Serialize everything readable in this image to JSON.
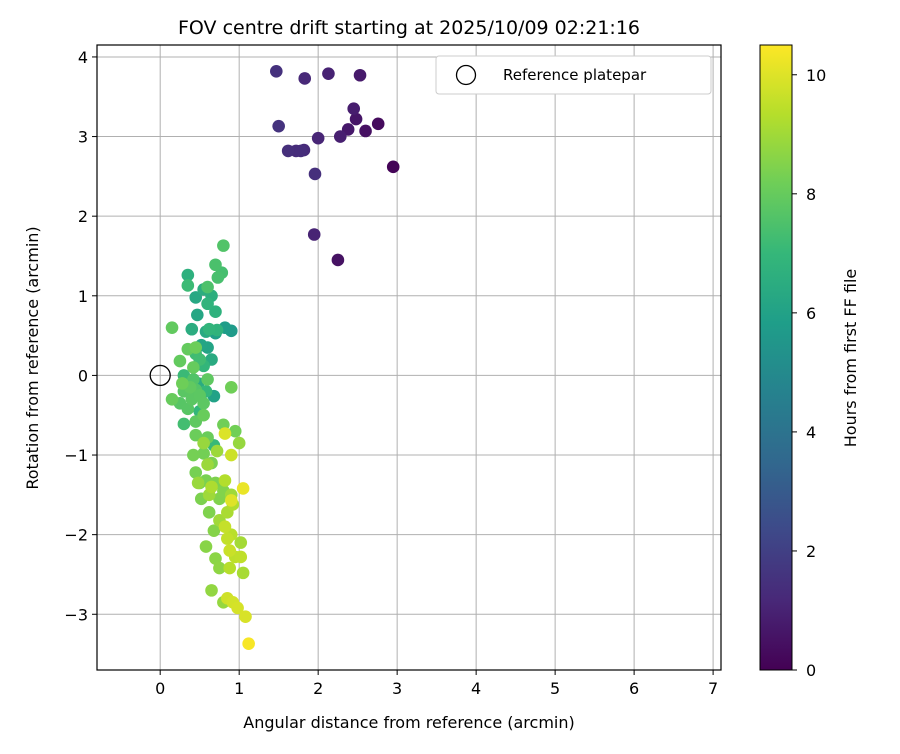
{
  "chart_data": {
    "type": "scatter",
    "title": "FOV centre drift starting at 2025/10/09 02:21:16",
    "xlabel": "Angular distance from reference (arcmin)",
    "ylabel": "Rotation from reference (arcmin)",
    "xlim": [
      -0.8,
      7.1
    ],
    "ylim": [
      -3.7,
      4.15
    ],
    "xticks": [
      0,
      1,
      2,
      3,
      4,
      5,
      6,
      7
    ],
    "yticks": [
      -3,
      -2,
      -1,
      0,
      1,
      2,
      3,
      4
    ],
    "xtick_labels": [
      "0",
      "1",
      "2",
      "3",
      "4",
      "5",
      "6",
      "7"
    ],
    "ytick_labels": [
      "−3",
      "−2",
      "−1",
      "0",
      "1",
      "2",
      "3",
      "4"
    ],
    "grid": true,
    "legend": {
      "placement": "top-right",
      "label": "Reference platepar"
    },
    "reference": {
      "x": 0,
      "y": 0
    },
    "colorbar": {
      "label": "Hours from first FF file",
      "range": [
        0,
        10.5
      ],
      "ticks": [
        0,
        2,
        4,
        6,
        8,
        10
      ],
      "tick_labels": [
        "0",
        "2",
        "4",
        "6",
        "8",
        "10"
      ],
      "colormap": "viridis",
      "stops": [
        "#440154",
        "#482878",
        "#3e4989",
        "#31688e",
        "#26828e",
        "#1f9e89",
        "#35b779",
        "#6ece58",
        "#b5de2b",
        "#fde725"
      ]
    },
    "points": [
      {
        "x": 2.95,
        "y": 2.62,
        "h": 0.1
      },
      {
        "x": 2.76,
        "y": 3.16,
        "h": 0.3
      },
      {
        "x": 2.6,
        "y": 3.07,
        "h": 0.45
      },
      {
        "x": 2.25,
        "y": 1.45,
        "h": 0.5
      },
      {
        "x": 2.48,
        "y": 3.22,
        "h": 0.6
      },
      {
        "x": 2.38,
        "y": 3.09,
        "h": 0.7
      },
      {
        "x": 2.53,
        "y": 3.77,
        "h": 0.75
      },
      {
        "x": 2.45,
        "y": 3.35,
        "h": 0.85
      },
      {
        "x": 2.28,
        "y": 3.0,
        "h": 0.9
      },
      {
        "x": 2.13,
        "y": 3.79,
        "h": 1.0
      },
      {
        "x": 1.95,
        "y": 1.77,
        "h": 1.05
      },
      {
        "x": 2.0,
        "y": 2.98,
        "h": 1.1
      },
      {
        "x": 1.83,
        "y": 3.73,
        "h": 1.2
      },
      {
        "x": 1.82,
        "y": 2.83,
        "h": 1.25
      },
      {
        "x": 1.72,
        "y": 2.82,
        "h": 1.3
      },
      {
        "x": 1.78,
        "y": 2.82,
        "h": 1.35
      },
      {
        "x": 1.62,
        "y": 2.82,
        "h": 1.4
      },
      {
        "x": 1.96,
        "y": 2.53,
        "h": 1.45
      },
      {
        "x": 1.47,
        "y": 3.82,
        "h": 1.5
      },
      {
        "x": 1.5,
        "y": 3.13,
        "h": 1.55
      },
      {
        "x": 0.9,
        "y": 0.56,
        "h": 5.7
      },
      {
        "x": 0.82,
        "y": 0.6,
        "h": 5.8
      },
      {
        "x": 0.7,
        "y": 0.53,
        "h": 5.9
      },
      {
        "x": 0.68,
        "y": -0.26,
        "h": 6.0
      },
      {
        "x": 0.6,
        "y": 0.35,
        "h": 6.1
      },
      {
        "x": 0.52,
        "y": 0.38,
        "h": 6.15
      },
      {
        "x": 0.47,
        "y": 0.76,
        "h": 6.2
      },
      {
        "x": 0.45,
        "y": 0.98,
        "h": 6.3
      },
      {
        "x": 0.58,
        "y": 0.55,
        "h": 6.35
      },
      {
        "x": 0.65,
        "y": 0.2,
        "h": 6.4
      },
      {
        "x": 0.48,
        "y": -0.1,
        "h": 6.45
      },
      {
        "x": 0.4,
        "y": 0.58,
        "h": 6.5
      },
      {
        "x": 0.55,
        "y": 1.08,
        "h": 6.55
      },
      {
        "x": 0.65,
        "y": 1.0,
        "h": 6.6
      },
      {
        "x": 0.35,
        "y": 1.26,
        "h": 6.65
      },
      {
        "x": 0.7,
        "y": 0.8,
        "h": 6.7
      },
      {
        "x": 0.72,
        "y": 0.57,
        "h": 6.75
      },
      {
        "x": 0.6,
        "y": 0.9,
        "h": 6.8
      },
      {
        "x": 0.62,
        "y": 0.58,
        "h": 6.85
      },
      {
        "x": 0.55,
        "y": 0.12,
        "h": 6.9
      },
      {
        "x": 0.5,
        "y": -0.45,
        "h": 6.95
      },
      {
        "x": 0.58,
        "y": -0.2,
        "h": 7.0
      },
      {
        "x": 0.68,
        "y": -0.88,
        "h": 7.05
      },
      {
        "x": 0.3,
        "y": 0.0,
        "h": 7.1
      },
      {
        "x": 0.35,
        "y": 1.13,
        "h": 7.15
      },
      {
        "x": 0.45,
        "y": 0.27,
        "h": 7.2
      },
      {
        "x": 0.5,
        "y": 0.2,
        "h": 7.25
      },
      {
        "x": 0.3,
        "y": -0.61,
        "h": 7.3
      },
      {
        "x": 0.78,
        "y": 1.29,
        "h": 7.35
      },
      {
        "x": 0.73,
        "y": 1.23,
        "h": 7.4
      },
      {
        "x": 0.7,
        "y": 1.39,
        "h": 7.45
      },
      {
        "x": 0.6,
        "y": 1.11,
        "h": 7.5
      },
      {
        "x": 0.8,
        "y": 1.63,
        "h": 7.6
      },
      {
        "x": 0.42,
        "y": -0.05,
        "h": 7.6
      },
      {
        "x": 0.45,
        "y": -0.18,
        "h": 7.65
      },
      {
        "x": 0.25,
        "y": -0.35,
        "h": 7.7
      },
      {
        "x": 0.35,
        "y": -0.42,
        "h": 7.72
      },
      {
        "x": 0.3,
        "y": -0.2,
        "h": 7.75
      },
      {
        "x": 0.4,
        "y": -0.3,
        "h": 7.78
      },
      {
        "x": 0.5,
        "y": -0.25,
        "h": 7.8
      },
      {
        "x": 0.55,
        "y": -0.35,
        "h": 7.82
      },
      {
        "x": 0.6,
        "y": -0.05,
        "h": 7.85
      },
      {
        "x": 0.45,
        "y": -0.58,
        "h": 7.88
      },
      {
        "x": 0.38,
        "y": -0.15,
        "h": 7.9
      },
      {
        "x": 0.15,
        "y": 0.6,
        "h": 7.92
      },
      {
        "x": 0.25,
        "y": 0.18,
        "h": 7.95
      },
      {
        "x": 0.35,
        "y": 0.33,
        "h": 7.97
      },
      {
        "x": 0.42,
        "y": 0.1,
        "h": 8.0
      },
      {
        "x": 0.15,
        "y": -0.3,
        "h": 8.02
      },
      {
        "x": 0.55,
        "y": -0.5,
        "h": 8.05
      },
      {
        "x": 0.6,
        "y": -0.78,
        "h": 8.08
      },
      {
        "x": 0.45,
        "y": -0.75,
        "h": 8.1
      },
      {
        "x": 0.45,
        "y": 0.35,
        "h": 8.12
      },
      {
        "x": 0.28,
        "y": -0.1,
        "h": 8.15
      },
      {
        "x": 0.9,
        "y": -0.15,
        "h": 8.18
      },
      {
        "x": 0.8,
        "y": -0.62,
        "h": 8.2
      },
      {
        "x": 0.95,
        "y": -0.7,
        "h": 8.22
      },
      {
        "x": 0.55,
        "y": -0.98,
        "h": 8.25
      },
      {
        "x": 0.42,
        "y": -1.0,
        "h": 8.28
      },
      {
        "x": 0.45,
        "y": -1.22,
        "h": 8.3
      },
      {
        "x": 0.5,
        "y": -1.35,
        "h": 8.32
      },
      {
        "x": 0.58,
        "y": -1.32,
        "h": 8.35
      },
      {
        "x": 0.65,
        "y": -1.1,
        "h": 8.38
      },
      {
        "x": 0.52,
        "y": -1.55,
        "h": 8.4
      },
      {
        "x": 0.7,
        "y": -1.35,
        "h": 8.42
      },
      {
        "x": 0.62,
        "y": -1.72,
        "h": 8.45
      },
      {
        "x": 0.75,
        "y": -1.55,
        "h": 8.48
      },
      {
        "x": 0.8,
        "y": -1.45,
        "h": 8.5
      },
      {
        "x": 0.68,
        "y": -1.95,
        "h": 8.55
      },
      {
        "x": 0.58,
        "y": -2.15,
        "h": 8.6
      },
      {
        "x": 0.7,
        "y": -2.3,
        "h": 8.65
      },
      {
        "x": 0.75,
        "y": -2.42,
        "h": 8.7
      },
      {
        "x": 0.65,
        "y": -2.7,
        "h": 8.75
      },
      {
        "x": 0.8,
        "y": -2.85,
        "h": 8.8
      },
      {
        "x": 1.0,
        "y": -0.85,
        "h": 8.82
      },
      {
        "x": 0.55,
        "y": -0.85,
        "h": 8.85
      },
      {
        "x": 0.48,
        "y": -1.35,
        "h": 8.88
      },
      {
        "x": 0.6,
        "y": -1.12,
        "h": 8.9
      },
      {
        "x": 0.72,
        "y": -0.95,
        "h": 8.92
      },
      {
        "x": 0.9,
        "y": -1.5,
        "h": 8.95
      },
      {
        "x": 0.62,
        "y": -1.5,
        "h": 8.98
      },
      {
        "x": 0.75,
        "y": -1.82,
        "h": 9.0
      },
      {
        "x": 1.02,
        "y": -2.1,
        "h": 9.05
      },
      {
        "x": 1.05,
        "y": -2.48,
        "h": 9.1
      },
      {
        "x": 0.85,
        "y": -1.72,
        "h": 9.15
      },
      {
        "x": 0.65,
        "y": -1.4,
        "h": 9.2
      },
      {
        "x": 0.92,
        "y": -1.62,
        "h": 9.25
      },
      {
        "x": 0.82,
        "y": -1.32,
        "h": 9.3
      },
      {
        "x": 0.88,
        "y": -2.42,
        "h": 9.35
      },
      {
        "x": 0.9,
        "y": -2.0,
        "h": 9.4
      },
      {
        "x": 0.95,
        "y": -2.28,
        "h": 9.45
      },
      {
        "x": 1.02,
        "y": -2.28,
        "h": 9.5
      },
      {
        "x": 0.85,
        "y": -2.05,
        "h": 9.55
      },
      {
        "x": 0.82,
        "y": -1.9,
        "h": 9.6
      },
      {
        "x": 0.88,
        "y": -2.2,
        "h": 9.65
      },
      {
        "x": 0.9,
        "y": -1.0,
        "h": 9.7
      },
      {
        "x": 0.85,
        "y": -2.8,
        "h": 9.75
      },
      {
        "x": 0.92,
        "y": -2.85,
        "h": 9.8
      },
      {
        "x": 0.98,
        "y": -2.92,
        "h": 9.85
      },
      {
        "x": 1.08,
        "y": -3.03,
        "h": 9.9
      },
      {
        "x": 0.82,
        "y": -0.73,
        "h": 9.95
      },
      {
        "x": 0.9,
        "y": -1.57,
        "h": 10.0
      },
      {
        "x": 1.05,
        "y": -1.42,
        "h": 10.2
      },
      {
        "x": 1.12,
        "y": -3.37,
        "h": 10.4
      }
    ]
  }
}
